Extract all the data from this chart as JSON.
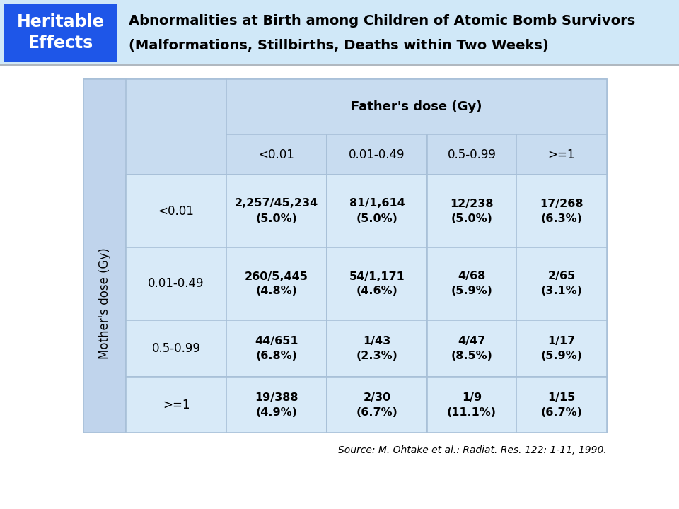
{
  "title_box_color": "#1E56E8",
  "title_box_text": "Heritable\nEffects",
  "title_text_line1": "Abnormalities at Birth among Children of Atomic Bomb Survivors",
  "title_text_line2": "(Malformations, Stillbirths, Deaths within Two Weeks)",
  "header_strip_color": "#d8eaf8",
  "table_header_bg": "#c8dcf0",
  "table_cell_bg": "#d8eaf8",
  "table_left_col_bg": "#c0d4ec",
  "father_dose_label": "Father's dose (Gy)",
  "mother_dose_label": "Mother's dose (Gy)",
  "father_dose_ranges": [
    "<0.01",
    "0.01-0.49",
    "0.5-0.99",
    ">=1"
  ],
  "mother_dose_ranges": [
    "<0.01",
    "0.01-0.49",
    "0.5-0.99",
    ">=1"
  ],
  "table_data": [
    [
      "2,257/45,234\n(5.0%)",
      "81/1,614\n(5.0%)",
      "12/238\n(5.0%)",
      "17/268\n(6.3%)"
    ],
    [
      "260/5,445\n(4.8%)",
      "54/1,171\n(4.6%)",
      "4/68\n(5.9%)",
      "2/65\n(3.1%)"
    ],
    [
      "44/651\n(6.8%)",
      "1/43\n(2.3%)",
      "4/47\n(8.5%)",
      "1/17\n(5.9%)"
    ],
    [
      "19/388\n(4.9%)",
      "2/30\n(6.7%)",
      "1/9\n(11.1%)",
      "1/15\n(6.7%)"
    ]
  ],
  "source_text": "Source: M. Ohtake et al.: Radiat. Res. 122: 1-11, 1990.",
  "fig_bg": "#ffffff",
  "grid_color": "#a8c0d8",
  "grid_lw": 1.2
}
